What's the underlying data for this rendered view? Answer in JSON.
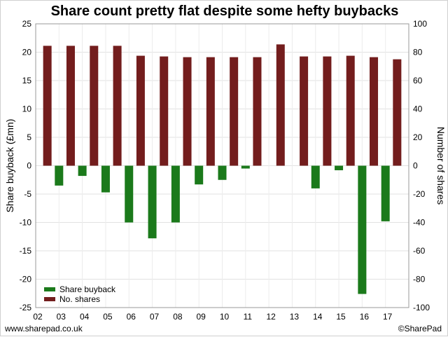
{
  "chart_data": {
    "type": "bar",
    "title": "Share count pretty flat despite some hefty buybacks",
    "categories": [
      "02",
      "03",
      "04",
      "05",
      "06",
      "07",
      "08",
      "09",
      "10",
      "11",
      "12",
      "13",
      "14",
      "15",
      "16",
      "17"
    ],
    "ylabel_left": "Share buyback (£mn)",
    "ylabel_right": "Number of shares",
    "ylim_left": [
      -25,
      25
    ],
    "ylim_right": [
      -100,
      100
    ],
    "yticks_left": [
      "25",
      "20",
      "15",
      "10",
      "5",
      "0",
      "-5",
      "-10",
      "-15",
      "-20",
      "-25"
    ],
    "yticks_right": [
      "100",
      "80",
      "60",
      "40",
      "20",
      "0",
      "-20",
      "-40",
      "-60",
      "-80",
      "-100"
    ],
    "series": [
      {
        "name": "No. shares",
        "axis": "right",
        "color": "#731d1d",
        "values": [
          84.5,
          84.5,
          84.5,
          84.5,
          77.5,
          77,
          76.5,
          76.5,
          76.5,
          76.5,
          85.5,
          77,
          77,
          77.5,
          76.5,
          75
        ]
      },
      {
        "name": "Share buyback",
        "axis": "left",
        "color": "#1b7a1b",
        "values": [
          -3.5,
          -1.8,
          -4.7,
          -10,
          -12.8,
          -10,
          -3.3,
          -2.5,
          -0.5,
          0,
          0,
          -4,
          -0.8,
          -22.6,
          -9.8,
          0
        ]
      }
    ],
    "grid": true,
    "legend_position": "bottom-left"
  },
  "footer": {
    "left": "www.sharepad.co.uk",
    "right": "©SharePad"
  }
}
